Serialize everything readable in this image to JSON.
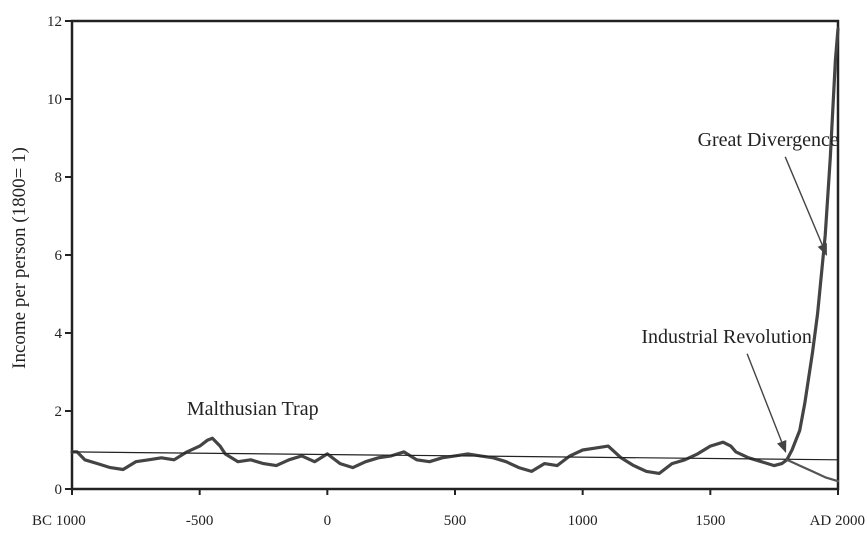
{
  "chart_data": {
    "type": "line",
    "title": "",
    "xlabel": "",
    "ylabel": "Income per person (1800= 1)",
    "xlim": [
      -1000,
      2000
    ],
    "ylim": [
      0,
      12
    ],
    "grid": false,
    "x_ticks": [
      {
        "value": -1000,
        "label": "BC 1000"
      },
      {
        "value": -500,
        "label": "-500"
      },
      {
        "value": 0,
        "label": "0"
      },
      {
        "value": 500,
        "label": "500"
      },
      {
        "value": 1000,
        "label": "1000"
      },
      {
        "value": 1500,
        "label": "1500"
      },
      {
        "value": 2000,
        "label": "AD 2000"
      }
    ],
    "y_ticks": [
      {
        "value": 0,
        "label": "0"
      },
      {
        "value": 2,
        "label": "2"
      },
      {
        "value": 4,
        "label": "4"
      },
      {
        "value": 6,
        "label": "6"
      },
      {
        "value": 8,
        "label": "8"
      },
      {
        "value": 10,
        "label": "10"
      },
      {
        "value": 12,
        "label": "12"
      }
    ],
    "series": [
      {
        "x": [
          -1000,
          -980,
          -950,
          -900,
          -850,
          -800,
          -750,
          -700,
          -650,
          -600,
          -550,
          -500,
          -470,
          -450,
          -420,
          -400,
          -350,
          -300,
          -250,
          -200,
          -150,
          -100,
          -50,
          0,
          50,
          100,
          150,
          200,
          250,
          300,
          350,
          400,
          450,
          500,
          550,
          600,
          650,
          700,
          750,
          800,
          850,
          900,
          950,
          1000,
          1050,
          1100,
          1150,
          1200,
          1250,
          1300,
          1350,
          1400,
          1450,
          1500,
          1550,
          1580,
          1600,
          1650,
          1700,
          1750,
          1780,
          1800,
          1820,
          1850,
          1870,
          1900,
          1920,
          1950,
          1970,
          1990,
          2000
        ],
        "y": [
          0.95,
          0.95,
          0.75,
          0.65,
          0.55,
          0.5,
          0.7,
          0.75,
          0.8,
          0.75,
          0.95,
          1.1,
          1.25,
          1.3,
          1.1,
          0.9,
          0.7,
          0.75,
          0.65,
          0.6,
          0.75,
          0.85,
          0.7,
          0.9,
          0.65,
          0.55,
          0.7,
          0.8,
          0.85,
          0.95,
          0.75,
          0.7,
          0.8,
          0.85,
          0.9,
          0.85,
          0.8,
          0.7,
          0.55,
          0.45,
          0.65,
          0.6,
          0.85,
          1.0,
          1.05,
          1.1,
          0.8,
          0.6,
          0.45,
          0.4,
          0.65,
          0.75,
          0.9,
          1.1,
          1.2,
          1.1,
          0.95,
          0.8,
          0.7,
          0.6,
          0.65,
          0.75,
          1.0,
          1.5,
          2.2,
          3.5,
          4.5,
          6.5,
          8.5,
          11.0,
          11.8
        ]
      },
      {
        "x": [
          -1000,
          2000
        ],
        "y": [
          0.95,
          0.75
        ]
      },
      {
        "x": [
          1800,
          1850,
          1900,
          1950,
          2000
        ],
        "y": [
          0.75,
          0.6,
          0.45,
          0.3,
          0.2
        ]
      }
    ],
    "annotations": [
      {
        "text": "Great Divergence",
        "text_x": 1450,
        "text_y": 8.8,
        "arrow_to_x": 1955,
        "arrow_to_y": 6.0
      },
      {
        "text": "Industrial Revolution",
        "text_x": 1230,
        "text_y": 3.75,
        "arrow_to_x": 1795,
        "arrow_to_y": 0.95
      },
      {
        "text": "Malthusian Trap",
        "text_x": -550,
        "text_y": 1.9
      }
    ]
  }
}
